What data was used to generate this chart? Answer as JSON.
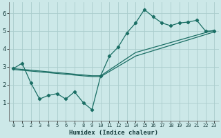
{
  "xlabel": "Humidex (Indice chaleur)",
  "bg_color": "#cce8e8",
  "grid_color": "#aacccc",
  "line_color": "#1a6e64",
  "xlim": [
    -0.5,
    23.5
  ],
  "ylim": [
    0,
    6.6
  ],
  "xticks": [
    0,
    1,
    2,
    3,
    4,
    5,
    6,
    7,
    8,
    9,
    10,
    11,
    12,
    13,
    14,
    15,
    16,
    17,
    18,
    19,
    20,
    21,
    22,
    23
  ],
  "yticks": [
    1,
    2,
    3,
    4,
    5,
    6
  ],
  "line1_x": [
    0,
    1,
    2,
    3,
    4,
    5,
    6,
    7,
    8,
    9,
    10,
    11,
    12,
    13,
    14,
    15,
    16,
    17,
    18,
    19,
    20,
    21,
    22,
    23
  ],
  "line1_y": [
    2.9,
    3.2,
    2.1,
    1.2,
    1.4,
    1.5,
    1.2,
    1.6,
    1.0,
    0.6,
    2.5,
    3.6,
    4.1,
    4.9,
    5.45,
    6.2,
    5.8,
    5.45,
    5.3,
    5.45,
    5.5,
    5.6,
    5.0,
    5.0
  ],
  "line2_x": [
    0,
    9,
    10,
    14,
    23
  ],
  "line2_y": [
    2.9,
    2.5,
    2.5,
    3.8,
    5.05
  ],
  "line3_x": [
    0,
    9,
    10,
    14,
    23
  ],
  "line3_y": [
    2.85,
    2.45,
    2.45,
    3.6,
    4.95
  ],
  "xlabel_fontsize": 6.5,
  "tick_fontsize_x": 5.0,
  "tick_fontsize_y": 6.5
}
